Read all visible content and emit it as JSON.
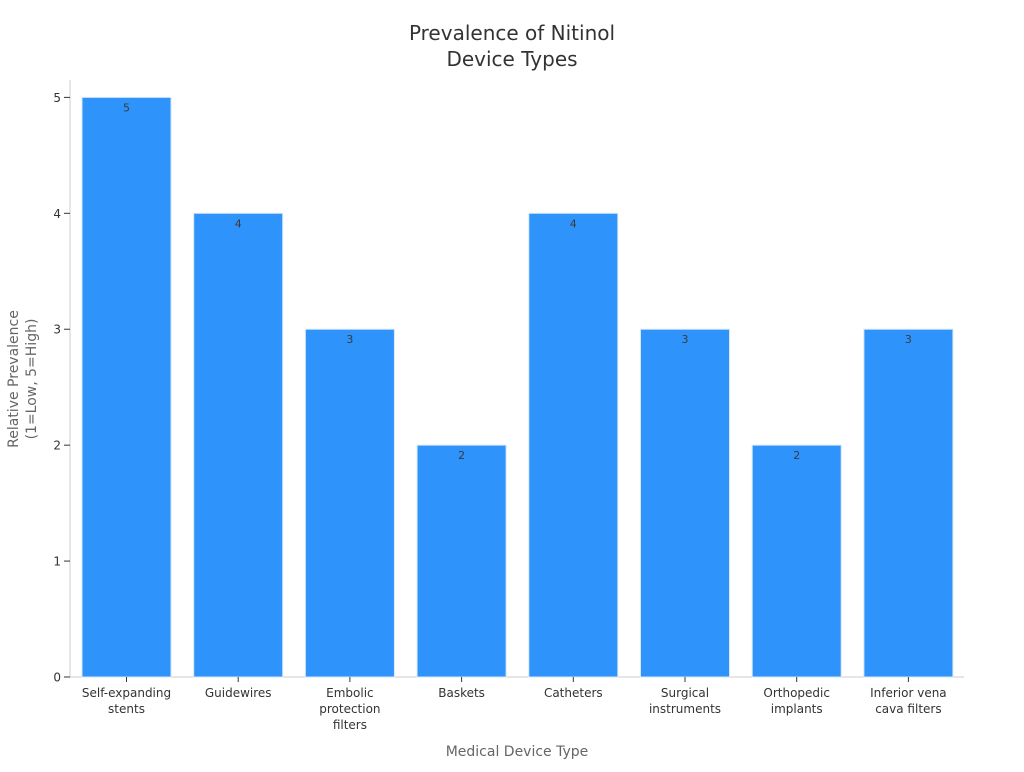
{
  "colors": {
    "bar": "#2e93fa",
    "bar_edge": "#d6e6f7",
    "title": "#333333",
    "axis_label": "#666666",
    "tick_label": "#333333",
    "axis_line": "#cccccc",
    "value_label": "#3b3b3b"
  },
  "chart_data": {
    "type": "bar",
    "title": [
      "Prevalence of Nitinol",
      "Device Types"
    ],
    "xlabel": "Medical Device Type",
    "ylabel": [
      "Relative Prevalence",
      "(1=Low, 5=High)"
    ],
    "ylim": [
      0,
      5.15
    ],
    "yticks": [
      0,
      1,
      2,
      3,
      4,
      5
    ],
    "grid": false,
    "categories": [
      [
        "Self-expanding",
        "stents"
      ],
      [
        "Guidewires"
      ],
      [
        "Embolic",
        "protection",
        "filters"
      ],
      [
        "Baskets"
      ],
      [
        "Catheters"
      ],
      [
        "Surgical",
        "instruments"
      ],
      [
        "Orthopedic",
        "implants"
      ],
      [
        "Inferior vena",
        "cava filters"
      ]
    ],
    "values": [
      5,
      4,
      3,
      2,
      4,
      3,
      2,
      3
    ],
    "data_labels": [
      "5",
      "4",
      "3",
      "2",
      "4",
      "3",
      "2",
      "3"
    ]
  }
}
